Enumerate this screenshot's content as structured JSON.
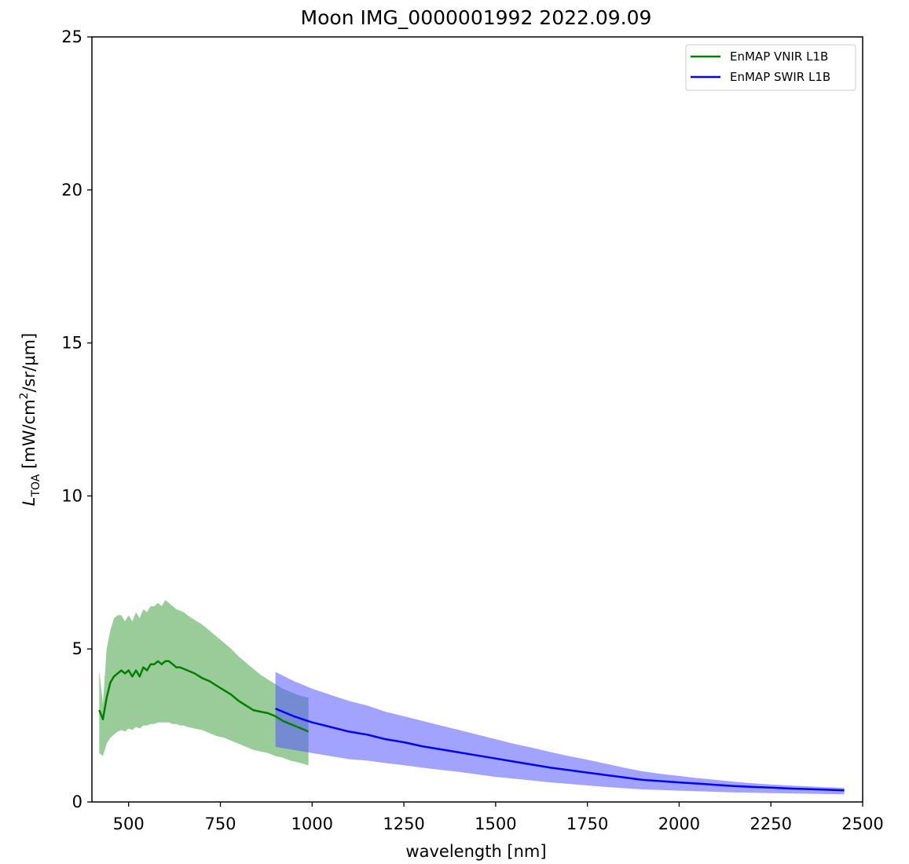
{
  "chart_data": {
    "type": "line",
    "title": "Moon IMG_0000001992  2022.09.09",
    "xlabel": "wavelength [nm]",
    "ylabel": {
      "symbol": "L",
      "subscript": "TOA",
      "units_prefix": " [mW/cm",
      "units_sup": "2",
      "units_suffix": "/sr/μm]"
    },
    "xlim": [
      400,
      2500
    ],
    "ylim": [
      0,
      25
    ],
    "xticks": [
      500,
      750,
      1000,
      1250,
      1500,
      1750,
      2000,
      2250,
      2500
    ],
    "yticks": [
      0,
      5,
      10,
      15,
      20,
      25
    ],
    "grid": false,
    "legend_position": "top-right",
    "series": [
      {
        "name": "EnMAP VNIR L1B",
        "color": "#008000",
        "band_color": "#339933",
        "band_opacity": 0.5,
        "x": [
          420,
          430,
          440,
          450,
          460,
          470,
          480,
          490,
          500,
          510,
          520,
          530,
          540,
          550,
          560,
          570,
          580,
          590,
          600,
          610,
          620,
          630,
          640,
          650,
          660,
          680,
          700,
          720,
          740,
          760,
          780,
          800,
          820,
          840,
          860,
          880,
          900,
          920,
          940,
          960,
          990
        ],
        "y": [
          3.0,
          2.7,
          3.4,
          3.9,
          4.1,
          4.2,
          4.3,
          4.2,
          4.3,
          4.1,
          4.3,
          4.1,
          4.4,
          4.3,
          4.5,
          4.5,
          4.6,
          4.5,
          4.6,
          4.6,
          4.5,
          4.4,
          4.4,
          4.35,
          4.3,
          4.2,
          4.05,
          3.95,
          3.8,
          3.65,
          3.5,
          3.3,
          3.15,
          3.0,
          2.95,
          2.9,
          2.8,
          2.65,
          2.55,
          2.45,
          2.3
        ],
        "upper": [
          4.3,
          3.2,
          5.0,
          5.6,
          6.0,
          6.1,
          6.1,
          5.9,
          6.1,
          5.9,
          6.2,
          6.0,
          6.3,
          6.2,
          6.4,
          6.4,
          6.5,
          6.4,
          6.6,
          6.5,
          6.4,
          6.3,
          6.25,
          6.2,
          6.1,
          5.95,
          5.8,
          5.6,
          5.4,
          5.2,
          5.0,
          4.75,
          4.55,
          4.35,
          4.15,
          4.0,
          3.85,
          3.7,
          3.6,
          3.5,
          3.4
        ],
        "lower": [
          1.6,
          1.5,
          1.9,
          2.1,
          2.2,
          2.3,
          2.35,
          2.3,
          2.4,
          2.35,
          2.45,
          2.4,
          2.5,
          2.5,
          2.55,
          2.55,
          2.6,
          2.6,
          2.6,
          2.6,
          2.55,
          2.55,
          2.5,
          2.5,
          2.45,
          2.4,
          2.35,
          2.25,
          2.15,
          2.1,
          2.0,
          1.9,
          1.8,
          1.7,
          1.65,
          1.6,
          1.5,
          1.45,
          1.35,
          1.3,
          1.2
        ]
      },
      {
        "name": "EnMAP SWIR L1B",
        "color": "#0000ff",
        "band_color": "#5555ff",
        "band_opacity": 0.55,
        "x": [
          900,
          950,
          1000,
          1050,
          1100,
          1150,
          1200,
          1250,
          1300,
          1350,
          1400,
          1450,
          1500,
          1550,
          1600,
          1650,
          1700,
          1750,
          1800,
          1850,
          1900,
          1950,
          2000,
          2050,
          2100,
          2150,
          2200,
          2250,
          2300,
          2350,
          2400,
          2450
        ],
        "y": [
          3.05,
          2.8,
          2.6,
          2.45,
          2.3,
          2.2,
          2.05,
          1.95,
          1.82,
          1.72,
          1.62,
          1.52,
          1.42,
          1.32,
          1.22,
          1.12,
          1.04,
          0.96,
          0.88,
          0.8,
          0.72,
          0.68,
          0.64,
          0.6,
          0.56,
          0.52,
          0.49,
          0.47,
          0.44,
          0.42,
          0.4,
          0.38
        ],
        "upper": [
          4.25,
          3.95,
          3.7,
          3.5,
          3.3,
          3.15,
          2.95,
          2.8,
          2.65,
          2.5,
          2.35,
          2.2,
          2.05,
          1.9,
          1.77,
          1.63,
          1.5,
          1.38,
          1.25,
          1.12,
          1.0,
          0.92,
          0.85,
          0.78,
          0.72,
          0.66,
          0.61,
          0.57,
          0.54,
          0.51,
          0.48,
          0.46
        ],
        "lower": [
          1.8,
          1.7,
          1.6,
          1.5,
          1.4,
          1.35,
          1.27,
          1.2,
          1.12,
          1.05,
          0.98,
          0.9,
          0.82,
          0.76,
          0.7,
          0.64,
          0.59,
          0.54,
          0.49,
          0.45,
          0.41,
          0.39,
          0.37,
          0.35,
          0.33,
          0.31,
          0.3,
          0.29,
          0.28,
          0.27,
          0.26,
          0.25
        ]
      }
    ]
  }
}
